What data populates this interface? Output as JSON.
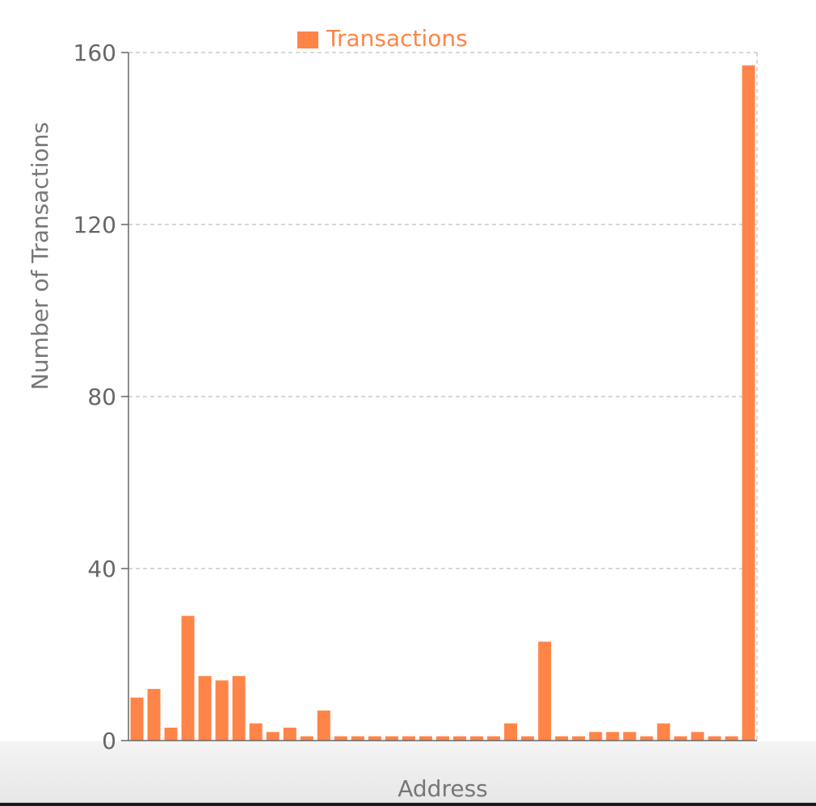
{
  "chart_data": {
    "type": "bar",
    "xlabel": "Address",
    "ylabel": "Number of Transactions",
    "ylim": [
      0,
      160
    ],
    "yticks": [
      0,
      40,
      80,
      120,
      160
    ],
    "grid": true,
    "legend_position": "top-center",
    "bar_color": "#ff8447",
    "series": [
      {
        "name": "Transactions",
        "values": [
          10,
          12,
          3,
          29,
          15,
          14,
          15,
          4,
          2,
          3,
          1,
          7,
          1,
          1,
          1,
          1,
          1,
          1,
          1,
          1,
          1,
          1,
          4,
          1,
          23,
          1,
          1,
          2,
          2,
          2,
          1,
          4,
          1,
          2,
          1,
          1,
          157
        ]
      }
    ]
  }
}
